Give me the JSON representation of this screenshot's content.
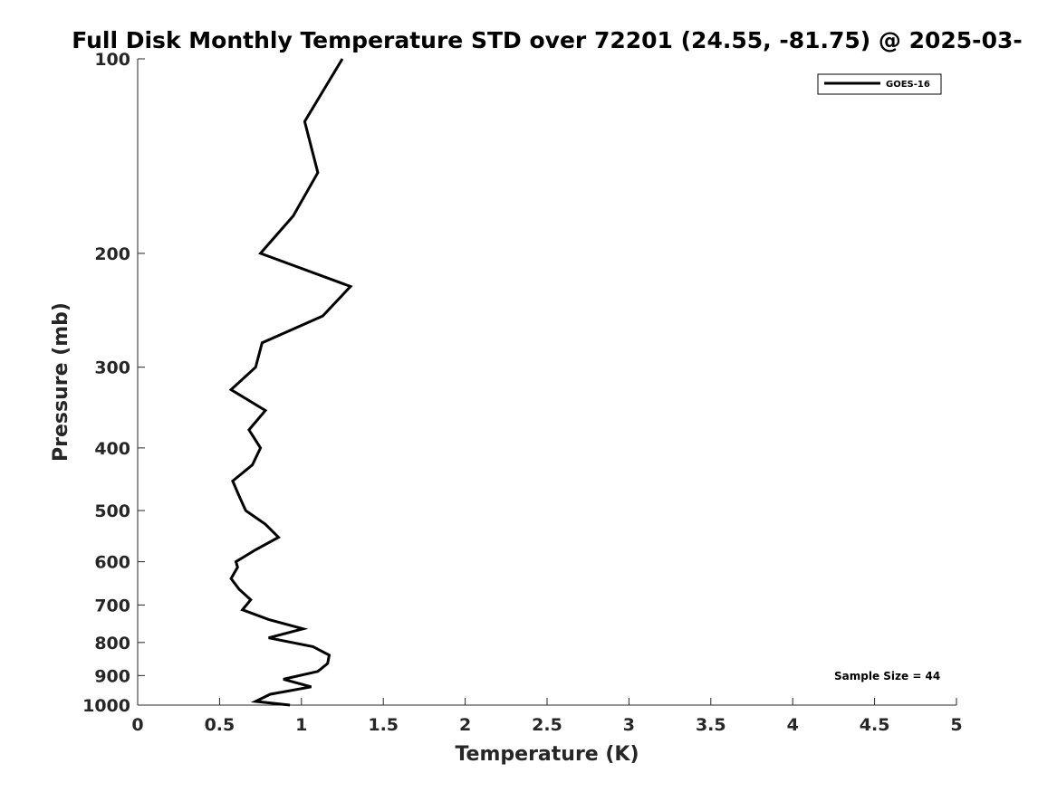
{
  "chart_data": {
    "type": "line",
    "title": "Full Disk Monthly Temperature STD over 72201 (24.55, -81.75) @ 2025-03-",
    "xlabel": "Temperature (K)",
    "ylabel": "Pressure (mb)",
    "xlim": [
      0,
      5
    ],
    "ylim": [
      100,
      1000
    ],
    "y_scale": "log",
    "y_reversed": true,
    "x_ticks": [
      "0",
      "0.5",
      "1",
      "1.5",
      "2",
      "2.5",
      "3",
      "3.5",
      "4",
      "4.5",
      "5"
    ],
    "y_ticks": [
      "100",
      "200",
      "300",
      "400",
      "500",
      "600",
      "700",
      "800",
      "900",
      "1000"
    ],
    "grid": false,
    "legend_position": "top-right",
    "series": [
      {
        "name": "GOES-16",
        "color": "#000000",
        "x": [
          1.25,
          1.02,
          1.1,
          0.95,
          0.75,
          1.3,
          1.13,
          0.76,
          0.72,
          0.57,
          0.78,
          0.68,
          0.75,
          0.7,
          0.58,
          0.62,
          0.66,
          0.78,
          0.86,
          0.72,
          0.6,
          0.61,
          0.57,
          0.62,
          0.69,
          0.64,
          0.8,
          1.01,
          0.8,
          1.07,
          1.17,
          1.16,
          1.1,
          0.89,
          1.06,
          0.81,
          0.72,
          0.93
        ],
        "y": [
          100,
          125,
          150,
          175,
          200,
          225,
          250,
          275,
          300,
          325,
          350,
          375,
          400,
          425,
          450,
          475,
          500,
          525,
          550,
          575,
          600,
          612,
          637,
          662,
          687,
          712,
          737,
          762,
          787,
          812,
          837,
          862,
          887,
          912,
          937,
          962,
          987,
          1000
        ]
      }
    ],
    "annotation": "Sample Size = 44"
  }
}
